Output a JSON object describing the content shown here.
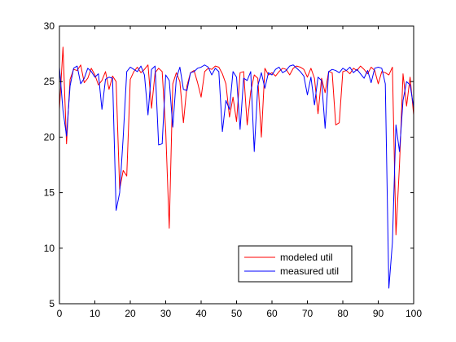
{
  "chart_data": {
    "type": "line",
    "xlim": [
      0,
      100
    ],
    "ylim": [
      5,
      30
    ],
    "xticks": [
      0,
      10,
      20,
      30,
      40,
      50,
      60,
      70,
      80,
      90,
      100
    ],
    "yticks": [
      5,
      10,
      15,
      20,
      25,
      30
    ],
    "grid": false,
    "legend_position": "bottom-right",
    "series": [
      {
        "name": "modeled util",
        "color": "#ff0000",
        "x": [
          0,
          1,
          2,
          3,
          4,
          5,
          6,
          7,
          8,
          9,
          10,
          11,
          12,
          13,
          14,
          15,
          16,
          17,
          18,
          19,
          20,
          21,
          22,
          23,
          24,
          25,
          26,
          27,
          28,
          29,
          30,
          31,
          32,
          33,
          34,
          35,
          36,
          37,
          38,
          39,
          40,
          41,
          42,
          43,
          44,
          45,
          46,
          47,
          48,
          49,
          50,
          51,
          52,
          53,
          54,
          55,
          56,
          57,
          58,
          59,
          60,
          61,
          62,
          63,
          64,
          65,
          66,
          67,
          68,
          69,
          70,
          71,
          72,
          73,
          74,
          75,
          76,
          77,
          78,
          79,
          80,
          81,
          82,
          83,
          84,
          85,
          86,
          87,
          88,
          89,
          90,
          91,
          92,
          93,
          94,
          95,
          96,
          97,
          98,
          99,
          100
        ],
        "y": [
          22.5,
          28.1,
          19.4,
          25.2,
          26.1,
          26.0,
          26.5,
          24.9,
          25.3,
          26.2,
          25.6,
          24.7,
          25.1,
          25.9,
          24.3,
          25.5,
          25.0,
          15.3,
          17.0,
          16.5,
          25.2,
          25.9,
          26.3,
          25.8,
          26.1,
          26.5,
          22.6,
          25.8,
          26.2,
          25.9,
          20.6,
          11.8,
          24.8,
          25.8,
          25.0,
          21.3,
          24.6,
          25.8,
          26.0,
          24.9,
          23.6,
          25.9,
          26.2,
          26.1,
          26.4,
          26.3,
          25.7,
          24.8,
          21.8,
          23.6,
          21.4,
          25.8,
          25.9,
          21.1,
          24.1,
          25.6,
          25.3,
          20.0,
          26.2,
          25.6,
          25.8,
          25.5,
          25.9,
          26.2,
          26.1,
          25.6,
          26.2,
          26.4,
          26.3,
          26.1,
          25.4,
          26.2,
          25.3,
          22.1,
          25.3,
          24.0,
          25.9,
          25.8,
          21.1,
          21.3,
          25.9,
          26.0,
          25.7,
          26.2,
          26.0,
          26.4,
          26.1,
          25.7,
          26.3,
          26.0,
          24.8,
          25.9,
          25.8,
          25.6,
          26.3,
          11.2,
          17.5,
          25.7,
          22.8,
          25.4,
          22.0
        ]
      },
      {
        "name": "measured util",
        "color": "#0000ff",
        "x": [
          0,
          1,
          2,
          3,
          4,
          5,
          6,
          7,
          8,
          9,
          10,
          11,
          12,
          13,
          14,
          15,
          16,
          17,
          18,
          19,
          20,
          21,
          22,
          23,
          24,
          25,
          26,
          27,
          28,
          29,
          30,
          31,
          32,
          33,
          34,
          35,
          36,
          37,
          38,
          39,
          40,
          41,
          42,
          43,
          44,
          45,
          46,
          47,
          48,
          49,
          50,
          51,
          52,
          53,
          54,
          55,
          56,
          57,
          58,
          59,
          60,
          61,
          62,
          63,
          64,
          65,
          66,
          67,
          68,
          69,
          70,
          71,
          72,
          73,
          74,
          75,
          76,
          77,
          78,
          79,
          80,
          81,
          82,
          83,
          84,
          85,
          86,
          87,
          88,
          89,
          90,
          91,
          92,
          93,
          94,
          95,
          96,
          97,
          98,
          99,
          100
        ],
        "y": [
          26.3,
          22.4,
          20.1,
          24.6,
          26.2,
          26.4,
          24.8,
          25.3,
          26.2,
          25.9,
          25.4,
          25.7,
          22.5,
          25.2,
          25.4,
          25.3,
          13.4,
          15.0,
          20.0,
          25.9,
          26.3,
          26.1,
          25.9,
          26.4,
          25.6,
          22.0,
          26.1,
          26.4,
          19.3,
          19.4,
          25.6,
          25.1,
          20.9,
          25.3,
          26.3,
          24.3,
          24.2,
          25.8,
          25.9,
          26.2,
          26.3,
          26.5,
          26.3,
          25.6,
          26.2,
          25.9,
          20.5,
          23.3,
          22.5,
          25.9,
          25.4,
          20.7,
          25.3,
          25.1,
          25.9,
          18.7,
          24.6,
          25.8,
          24.4,
          25.8,
          25.6,
          26.1,
          26.3,
          25.8,
          26.0,
          26.4,
          26.5,
          26.2,
          25.9,
          25.5,
          23.8,
          25.4,
          22.9,
          25.4,
          25.1,
          20.8,
          25.9,
          26.1,
          26.0,
          25.8,
          26.2,
          26.0,
          26.3,
          25.8,
          26.1,
          25.7,
          25.3,
          26.0,
          24.9,
          26.2,
          26.3,
          26.2,
          24.8,
          6.4,
          10.5,
          21.1,
          18.7,
          23.3,
          25.0,
          24.7,
          22.7
        ]
      }
    ]
  }
}
